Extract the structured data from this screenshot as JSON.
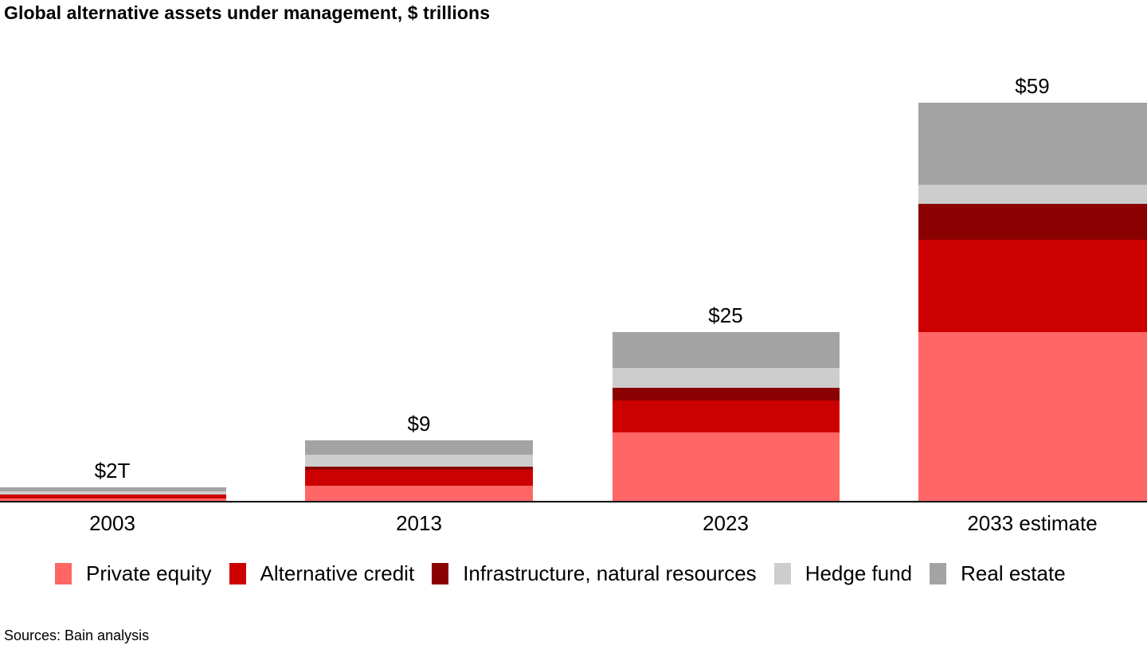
{
  "title": "Global alternative assets under management, $ trillions",
  "source_note": "Sources: Bain analysis",
  "colors": {
    "private_equity": "#FF6666",
    "alternative_credit": "#CC0000",
    "infrastructure_natural_resources": "#8B0000",
    "hedge_fund": "#CDCDCD",
    "real_estate": "#A3A3A3",
    "axis": "#000000",
    "text": "#000000",
    "background": "#FFFFFF"
  },
  "chart_data": {
    "type": "bar",
    "stacked": true,
    "title": "Global alternative assets under management, $ trillions",
    "unit": "$ trillions",
    "categories": [
      "2003",
      "2013",
      "2023",
      "2033 estimate"
    ],
    "total_labels": [
      "$2T",
      "$9",
      "$25",
      "$59"
    ],
    "totals": [
      2,
      9,
      25,
      59
    ],
    "series": [
      {
        "name": "Private equity",
        "color": "#FF6666",
        "values": [
          0.3,
          2.2,
          10.1,
          25.0
        ]
      },
      {
        "name": "Alternative credit",
        "color": "#CC0000",
        "values": [
          0.6,
          2.4,
          4.8,
          13.7
        ]
      },
      {
        "name": "Infrastructure, natural resources",
        "color": "#8B0000",
        "values": [
          0.1,
          0.5,
          1.9,
          5.3
        ]
      },
      {
        "name": "Hedge fund",
        "color": "#CDCDCD",
        "values": [
          0.4,
          1.8,
          2.9,
          2.9
        ]
      },
      {
        "name": "Real estate",
        "color": "#A3A3A3",
        "values": [
          0.6,
          2.1,
          5.3,
          12.1
        ]
      }
    ],
    "stack_order_bottom_to_top": [
      "Private equity",
      "Alternative credit",
      "Infrastructure, natural resources",
      "Hedge fund",
      "Real estate"
    ],
    "ylim": [
      0,
      62
    ],
    "grid": false,
    "axis_labels_shown": false,
    "legend_position": "bottom"
  },
  "legend": {
    "items": [
      {
        "label": "Private equity",
        "color": "#FF6666"
      },
      {
        "label": "Alternative credit",
        "color": "#CC0000"
      },
      {
        "label": "Infrastructure, natural resources",
        "color": "#8B0000"
      },
      {
        "label": "Hedge fund",
        "color": "#CDCDCD"
      },
      {
        "label": "Real estate",
        "color": "#A3A3A3"
      }
    ]
  }
}
